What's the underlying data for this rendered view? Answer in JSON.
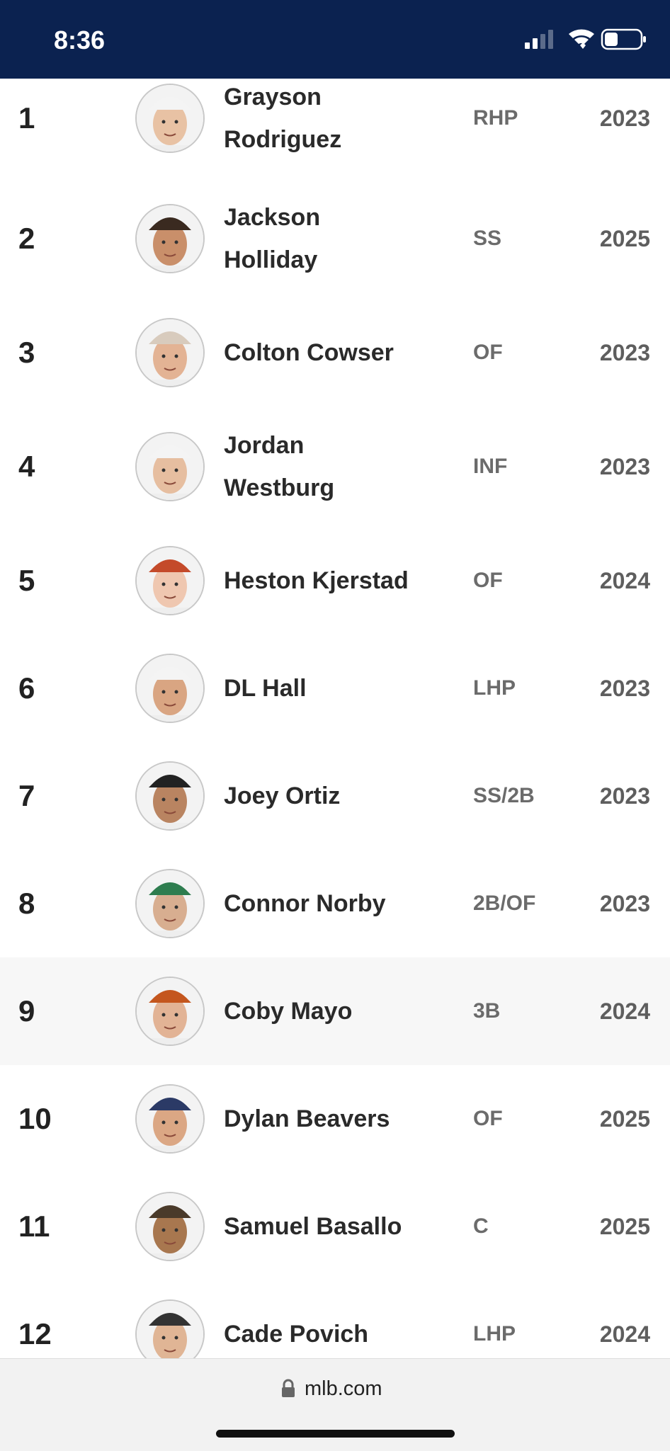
{
  "status_bar": {
    "time": "8:36"
  },
  "players": [
    {
      "rank": 1,
      "name": "Grayson Rodriguez",
      "position": "RHP",
      "eta": 2023
    },
    {
      "rank": 2,
      "name": "Jackson Holliday",
      "position": "SS",
      "eta": 2025
    },
    {
      "rank": 3,
      "name": "Colton Cowser",
      "position": "OF",
      "eta": 2023
    },
    {
      "rank": 4,
      "name": "Jordan Westburg",
      "position": "INF",
      "eta": 2023
    },
    {
      "rank": 5,
      "name": "Heston Kjerstad",
      "position": "OF",
      "eta": 2024
    },
    {
      "rank": 6,
      "name": "DL Hall",
      "position": "LHP",
      "eta": 2023
    },
    {
      "rank": 7,
      "name": "Joey Ortiz",
      "position": "SS/2B",
      "eta": 2023
    },
    {
      "rank": 8,
      "name": "Connor Norby",
      "position": "2B/OF",
      "eta": 2023
    },
    {
      "rank": 9,
      "name": "Coby Mayo",
      "position": "3B",
      "eta": 2024
    },
    {
      "rank": 10,
      "name": "Dylan Beavers",
      "position": "OF",
      "eta": 2025
    },
    {
      "rank": 11,
      "name": "Samuel Basallo",
      "position": "C",
      "eta": 2025
    },
    {
      "rank": 12,
      "name": "Cade Povich",
      "position": "LHP",
      "eta": 2024
    }
  ],
  "footer": {
    "url": "mlb.com"
  }
}
